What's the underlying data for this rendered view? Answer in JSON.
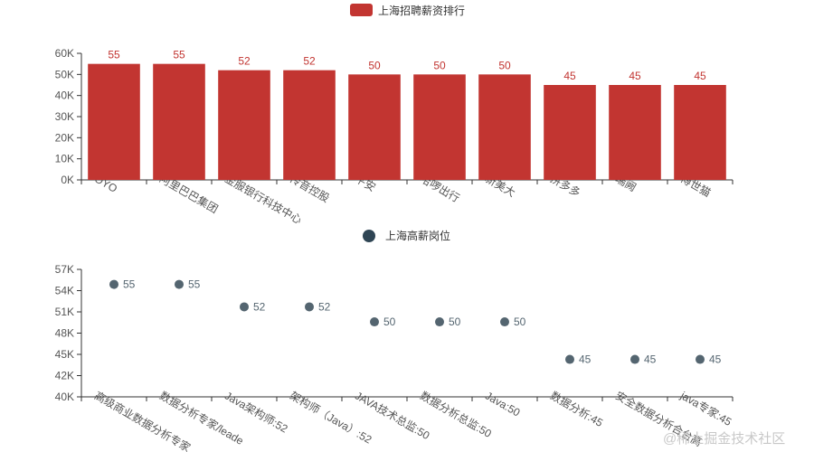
{
  "watermark": "@稀土掘金技术社区",
  "chart_data": [
    {
      "type": "bar",
      "title": "",
      "legend": {
        "name": "上海招聘薪资排行",
        "color": "#c23531",
        "placement": "top-center"
      },
      "categories": [
        "OYO",
        "阿里巴巴集团",
        "金服银行科技中心",
        "传音控股",
        "平安",
        "哈啰出行",
        "新美大",
        "拼多多",
        "瑞阙",
        "博世猫"
      ],
      "values": [
        55,
        55,
        52,
        52,
        50,
        50,
        50,
        45,
        45,
        45
      ],
      "ylim": [
        0,
        60
      ],
      "yticks": [
        "0K",
        "10K",
        "20K",
        "30K",
        "40K",
        "50K",
        "60K"
      ],
      "grid": false
    },
    {
      "type": "scatter",
      "title": "",
      "legend": {
        "name": "上海高薪岗位",
        "color": "#2f4554",
        "placement": "top-center"
      },
      "categories": [
        "高级商业数据分析专家",
        "数据分析专家/leade",
        "Java架构师:52",
        "架构师（Java）:52",
        "JAVA技术总监:50",
        "数据分析总监:50",
        "Java:50",
        "数据分析:45",
        "安全数据分析合台高",
        "java专家:45"
      ],
      "values": [
        55,
        55,
        52,
        52,
        50,
        50,
        50,
        45,
        45,
        45
      ],
      "point_color": "#546570",
      "ylim": [
        40,
        57
      ],
      "yticks": [
        "40K",
        "42K",
        "45K",
        "48K",
        "51K",
        "54K",
        "57K"
      ],
      "grid": false
    }
  ]
}
